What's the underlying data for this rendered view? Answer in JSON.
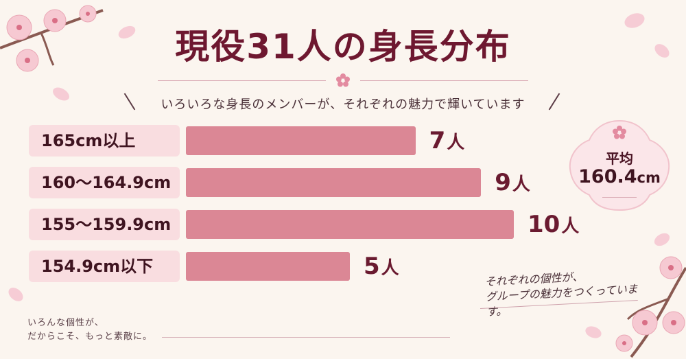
{
  "title": "現役31人の身長分布",
  "subtitle": "いろいろな身長のメンバーが、それぞれの魅力で輝いています",
  "average": {
    "label": "平均",
    "value": "160.4",
    "unit": "cm"
  },
  "note_right_lines": [
    "それぞれの個性が、",
    "グループの魅力をつくっています。"
  ],
  "note_left_lines": [
    "いろんな個性が、",
    "だからこそ、もっと素敵に。"
  ],
  "colors": {
    "bar": "#db8795",
    "label_bg": "#f9dde0",
    "title": "#6e1830",
    "background": "#fbf5ef"
  },
  "chart_data": {
    "type": "bar",
    "orientation": "horizontal",
    "categories": [
      "165cm以上",
      "160〜164.9cm",
      "155〜159.9cm",
      "154.9cm以下"
    ],
    "values": [
      7,
      9,
      10,
      5
    ],
    "value_unit": "人",
    "title": "現役31人の身長分布",
    "xlabel": "",
    "ylabel": "",
    "grid": false
  }
}
